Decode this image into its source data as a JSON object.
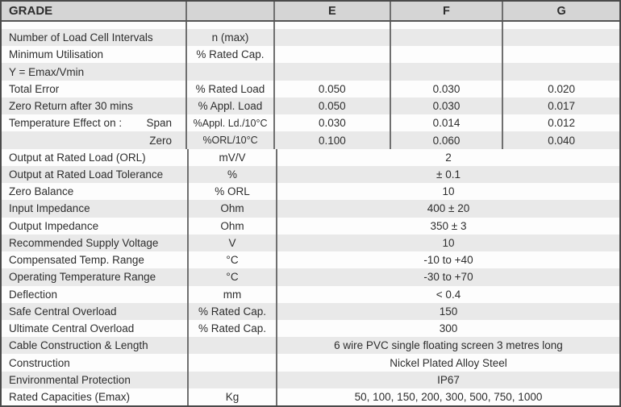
{
  "table": {
    "header": {
      "label": "GRADE",
      "unit": "",
      "columns": [
        "E",
        "F",
        "G"
      ]
    },
    "rows": [
      {
        "label": "Number of Load Cell Intervals",
        "unit": "n (max)",
        "values": [
          "",
          "",
          ""
        ]
      },
      {
        "label": "Minimum Utilisation",
        "unit": "% Rated Cap.",
        "values": [
          "",
          "",
          ""
        ]
      },
      {
        "label": "Y = Emax/Vmin",
        "unit": "",
        "values": [
          "",
          "",
          ""
        ]
      },
      {
        "label": "Total Error",
        "unit": "% Rated Load",
        "values": [
          "0.050",
          "0.030",
          "0.020"
        ]
      },
      {
        "label": "Zero Return after 30 mins",
        "unit": "% Appl. Load",
        "values": [
          "0.050",
          "0.030",
          "0.017"
        ]
      },
      {
        "label": "Temperature Effect on :",
        "label2": "Span",
        "unit": "%Appl. Ld./10°C",
        "values": [
          "0.030",
          "0.014",
          "0.012"
        ]
      },
      {
        "label": "",
        "label2": "Zero",
        "unit": "%ORL/10°C",
        "values": [
          "0.100",
          "0.060",
          "0.040"
        ]
      },
      {
        "label": "Output at Rated Load (ORL)",
        "unit": "mV/V",
        "value": "2"
      },
      {
        "label": "Output at Rated Load Tolerance",
        "unit": "%",
        "value": "± 0.1"
      },
      {
        "label": "Zero Balance",
        "unit": "% ORL",
        "value": "10"
      },
      {
        "label": "Input Impedance",
        "unit": "Ohm",
        "value": "400 ± 20"
      },
      {
        "label": "Output Impedance",
        "unit": "Ohm",
        "value": "350 ± 3"
      },
      {
        "label": "Recommended Supply Voltage",
        "unit": "V",
        "value": "10"
      },
      {
        "label": "Compensated Temp. Range",
        "unit": "°C",
        "value": "-10  to +40"
      },
      {
        "label": "Operating Temperature Range",
        "unit": "°C",
        "value": "-30  to +70"
      },
      {
        "label": "Deflection",
        "unit": "mm",
        "value": "< 0.4"
      },
      {
        "label": "Safe Central Overload",
        "unit": "% Rated Cap.",
        "value": "150"
      },
      {
        "label": "Ultimate Central Overload",
        "unit": "% Rated Cap.",
        "value": "300"
      },
      {
        "label": "Cable Construction & Length",
        "unit": "",
        "value": "6 wire PVC single floating screen 3 metres long"
      },
      {
        "label": "Construction",
        "unit": "",
        "value": "Nickel Plated Alloy Steel"
      },
      {
        "label": "Environmental Protection",
        "unit": "",
        "value": "IP67"
      },
      {
        "label": "Rated Capacities (Emax)",
        "unit": "Kg",
        "value": "50, 100, 150, 200, 300, 500, 750, 1000"
      }
    ]
  },
  "colors": {
    "header_bg": "#d5d5d5",
    "stripe_bg": "#e9e9e9",
    "row_bg": "#fdfdfd",
    "outer_border": "#4a4a4a",
    "inner_border": "#6f6f6f",
    "text": "#2d2d2d"
  }
}
